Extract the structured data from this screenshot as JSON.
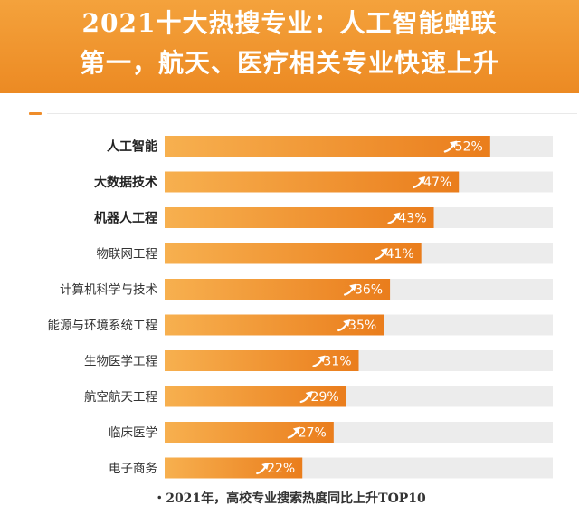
{
  "header": {
    "title_line1": "2021十大热搜专业：人工智能蝉联",
    "title_line2": "第一，航天、医疗相关专业快速上升"
  },
  "footnote": "・2021年，高校专业搜索热度同比上升TOP10",
  "colors": {
    "header_bg": "#ef8f27",
    "bar_start": "#f7b04f",
    "bar_end": "#ea7d1c",
    "track": "#ececec",
    "label_text": "#333333"
  },
  "icons": {
    "bar_marker": "trend-up-arrow-icon"
  },
  "chart_data": {
    "type": "bar",
    "orientation": "horizontal",
    "categories": [
      "人工智能",
      "大数据技术",
      "机器人工程",
      "物联网工程",
      "计算机科学与技术",
      "能源与环境系统工程",
      "生物医学工程",
      "航空航天工程",
      "临床医学",
      "电子商务"
    ],
    "values": [
      52,
      47,
      43,
      41,
      36,
      35,
      31,
      29,
      27,
      22
    ],
    "value_labels": [
      "52%",
      "47%",
      "43%",
      "41%",
      "36%",
      "35%",
      "31%",
      "29%",
      "27%",
      "22%"
    ],
    "bold_categories": [
      "人工智能",
      "大数据技术",
      "机器人工程"
    ],
    "unit": "%",
    "xlim": [
      0,
      62
    ],
    "grid": false,
    "legend": "none"
  }
}
